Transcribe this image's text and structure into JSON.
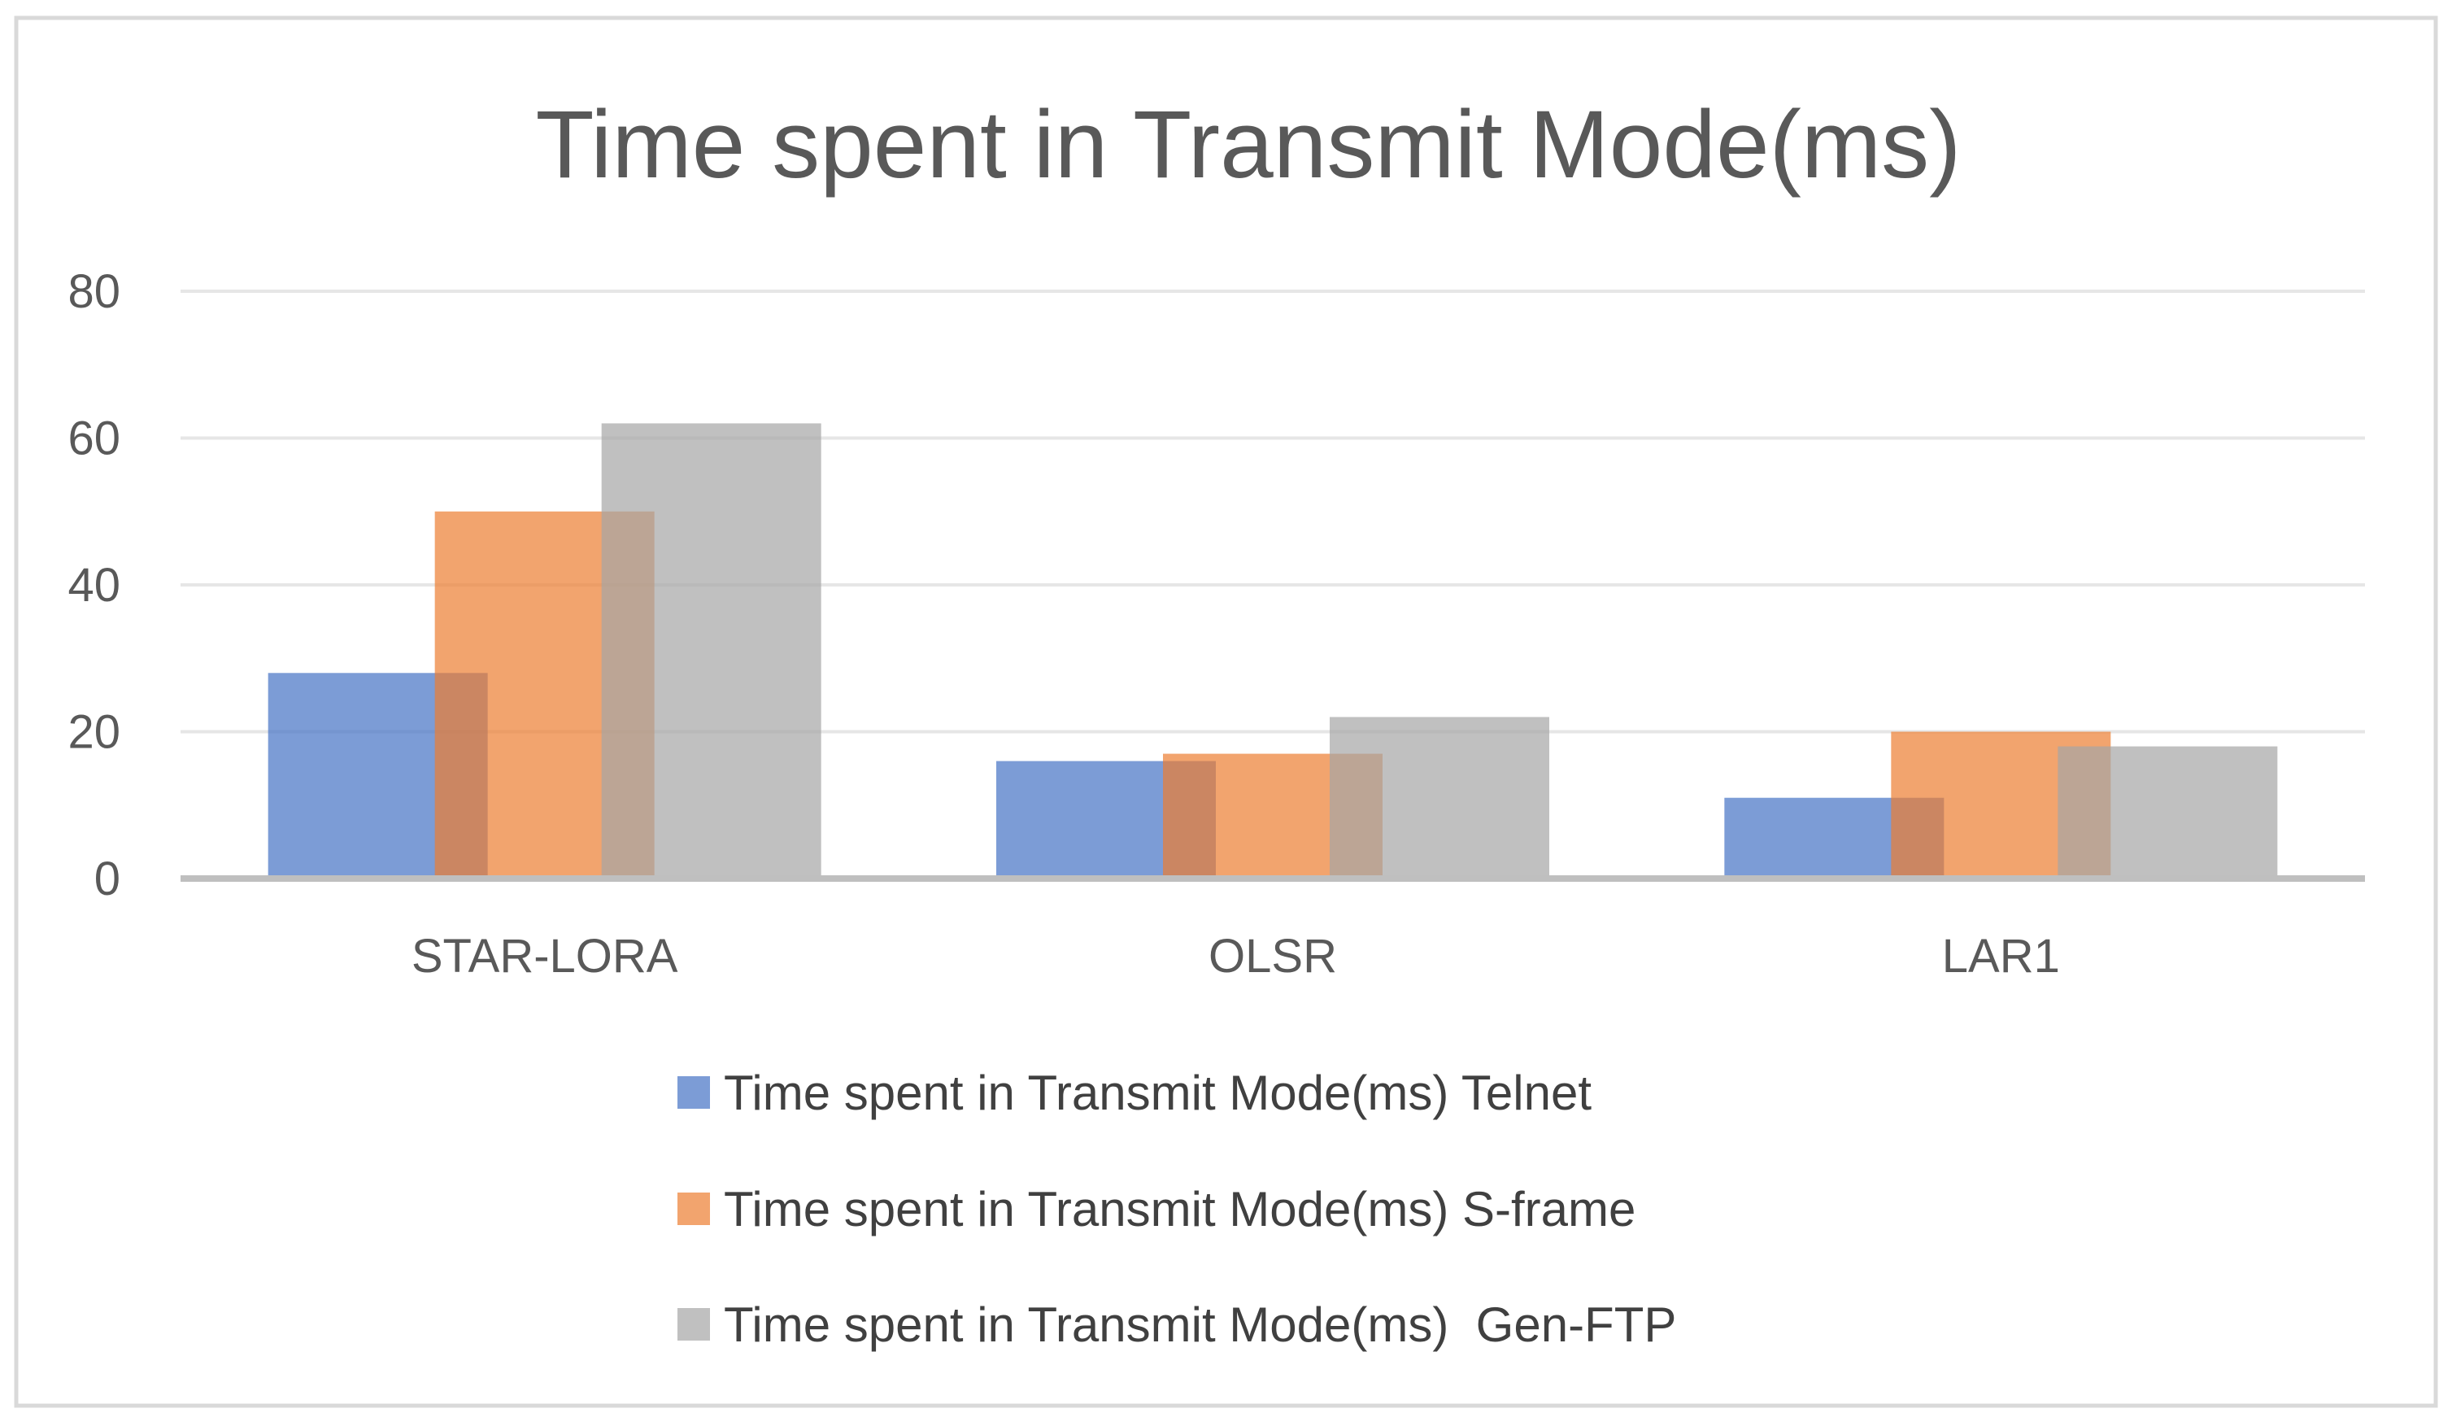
{
  "chart_data": {
    "type": "bar",
    "title": "Time spent in Transmit Mode(ms)",
    "xlabel": "",
    "ylabel": "",
    "ylim": [
      0,
      80
    ],
    "yticks": [
      0,
      20,
      40,
      60,
      80
    ],
    "grid": true,
    "legend_position": "bottom",
    "categories": [
      "STAR-LORA",
      "OLSR",
      "LAR1"
    ],
    "series": [
      {
        "name": "Time spent in Transmit Mode(ms) Telnet",
        "color": "#4472C4",
        "values": [
          28,
          16,
          11
        ]
      },
      {
        "name": "Time spent in Transmit Mode(ms) S-frame",
        "color": "#ED7D31",
        "values": [
          50,
          17,
          20
        ]
      },
      {
        "name": "Time spent in Transmit Mode(ms)  Gen-FTP",
        "color": "#A5A5A5",
        "values": [
          62,
          22,
          18
        ]
      }
    ]
  }
}
